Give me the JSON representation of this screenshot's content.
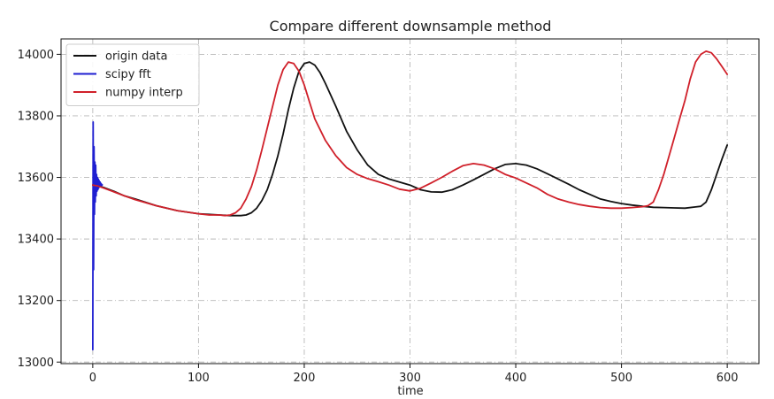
{
  "chart_data": {
    "type": "line",
    "title": "Compare different downsample method",
    "xlabel": "time",
    "ylabel": "",
    "xlim": [
      -30,
      630
    ],
    "ylim": [
      12995,
      14050
    ],
    "xticks": [
      0,
      100,
      200,
      300,
      400,
      500,
      600
    ],
    "yticks": [
      13000,
      13200,
      13400,
      13600,
      13800,
      14000
    ],
    "grid": true,
    "grid_style": "dash-dot",
    "legend_position": "top-left",
    "series": [
      {
        "name": "origin data",
        "color": "#111111",
        "x": [
          0,
          5,
          10,
          20,
          30,
          40,
          60,
          80,
          100,
          120,
          130,
          140,
          145,
          150,
          155,
          160,
          165,
          170,
          175,
          180,
          185,
          190,
          195,
          200,
          205,
          210,
          215,
          220,
          230,
          240,
          250,
          260,
          270,
          280,
          290,
          300,
          310,
          320,
          330,
          340,
          350,
          360,
          370,
          380,
          390,
          400,
          410,
          420,
          430,
          440,
          450,
          460,
          470,
          480,
          490,
          500,
          510,
          520,
          530,
          540,
          550,
          560,
          570,
          575,
          580,
          585,
          590,
          595,
          600
        ],
        "y": [
          13575,
          13572,
          13568,
          13555,
          13540,
          13530,
          13508,
          13492,
          13482,
          13478,
          13476,
          13476,
          13478,
          13485,
          13500,
          13525,
          13560,
          13610,
          13670,
          13740,
          13820,
          13890,
          13945,
          13970,
          13975,
          13965,
          13940,
          13905,
          13830,
          13750,
          13690,
          13640,
          13610,
          13595,
          13585,
          13575,
          13560,
          13553,
          13552,
          13560,
          13575,
          13592,
          13610,
          13628,
          13642,
          13645,
          13640,
          13628,
          13612,
          13595,
          13578,
          13560,
          13545,
          13530,
          13522,
          13515,
          13510,
          13506,
          13503,
          13502,
          13501,
          13500,
          13504,
          13506,
          13520,
          13560,
          13610,
          13660,
          13705
        ]
      },
      {
        "name": "scipy fft",
        "color": "#1f1fd1",
        "x": [
          0,
          0.4,
          0.8,
          1.2,
          1.6,
          2.0,
          2.4,
          2.8,
          3.2,
          3.6,
          4.0,
          4.4,
          4.8,
          5.2,
          5.6,
          6.0,
          6.5,
          7.0,
          7.5,
          8.0,
          8.5,
          9.0
        ],
        "y": [
          13040,
          13780,
          13300,
          13700,
          13480,
          13650,
          13520,
          13640,
          13540,
          13610,
          13555,
          13600,
          13560,
          13595,
          13565,
          13590,
          13570,
          13585,
          13572,
          13580,
          13574,
          13576
        ]
      },
      {
        "name": "numpy interp",
        "color": "#d0202a",
        "x": [
          0,
          5,
          10,
          20,
          30,
          40,
          60,
          80,
          100,
          110,
          120,
          125,
          130,
          135,
          140,
          145,
          150,
          155,
          160,
          165,
          170,
          175,
          180,
          185,
          190,
          195,
          200,
          205,
          210,
          220,
          230,
          240,
          250,
          260,
          270,
          280,
          290,
          300,
          310,
          320,
          330,
          340,
          350,
          360,
          370,
          380,
          390,
          400,
          410,
          420,
          430,
          440,
          450,
          460,
          470,
          480,
          490,
          500,
          510,
          520,
          525,
          530,
          535,
          540,
          545,
          550,
          555,
          560,
          565,
          570,
          575,
          580,
          585,
          590,
          595,
          600
        ],
        "y": [
          13575,
          13572,
          13566,
          13553,
          13540,
          13528,
          13508,
          13492,
          13482,
          13478,
          13478,
          13476,
          13478,
          13485,
          13500,
          13530,
          13570,
          13625,
          13690,
          13760,
          13830,
          13900,
          13950,
          13975,
          13970,
          13945,
          13900,
          13845,
          13790,
          13720,
          13670,
          13632,
          13610,
          13596,
          13586,
          13575,
          13562,
          13556,
          13565,
          13582,
          13600,
          13620,
          13638,
          13645,
          13640,
          13628,
          13610,
          13598,
          13582,
          13566,
          13545,
          13530,
          13520,
          13512,
          13506,
          13502,
          13500,
          13500,
          13502,
          13505,
          13508,
          13520,
          13560,
          13610,
          13670,
          13730,
          13790,
          13850,
          13920,
          13975,
          14000,
          14010,
          14005,
          13985,
          13960,
          13935
        ]
      }
    ]
  }
}
